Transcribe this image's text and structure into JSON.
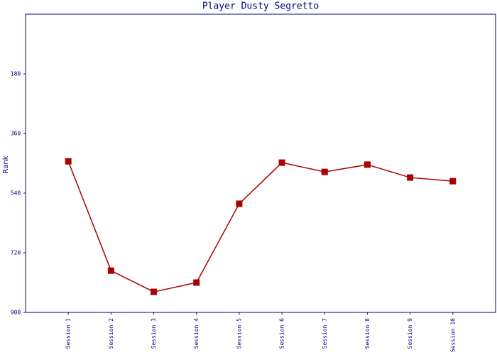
{
  "chart_data": {
    "type": "line",
    "title": "Player Dusty Segretto",
    "y_label": "Rank",
    "categories": [
      "Session 1",
      "Session 2",
      "Session 3",
      "Session 4",
      "Session 5",
      "Session 6",
      "Session 7",
      "Session 8",
      "Session 9",
      "Session 10"
    ],
    "series": [
      {
        "color": "#aa0000",
        "values": [
          444,
          774,
          838,
          810,
          572,
          448,
          476,
          454,
          493,
          504
        ]
      }
    ],
    "ylim": [
      900,
      0
    ],
    "yticks": [
      180,
      360,
      540,
      720,
      900
    ],
    "grid": false
  }
}
